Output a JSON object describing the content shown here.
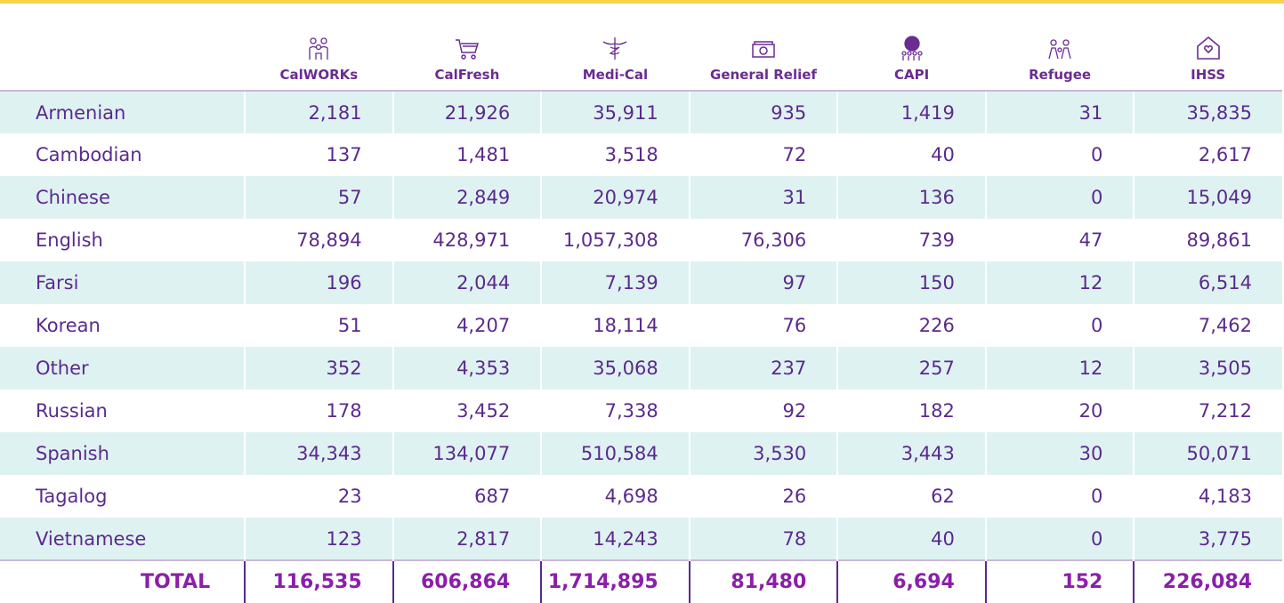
{
  "table": {
    "columns": [
      "CalWORKs",
      "CalFresh",
      "Medi-Cal",
      "General Relief",
      "CAPI",
      "Refugee",
      "IHSS"
    ],
    "rows": [
      [
        "Armenian",
        "2,181",
        "21,926",
        "35,911",
        "935",
        "1,419",
        "31",
        "35,835"
      ],
      [
        "Cambodian",
        "137",
        "1,481",
        "3,518",
        "72",
        "40",
        "0",
        "2,617"
      ],
      [
        "Chinese",
        "57",
        "2,849",
        "20,974",
        "31",
        "136",
        "0",
        "15,049"
      ],
      [
        "English",
        "78,894",
        "428,971",
        "1,057,308",
        "76,306",
        "739",
        "47",
        "89,861"
      ],
      [
        "Farsi",
        "196",
        "2,044",
        "7,139",
        "97",
        "150",
        "12",
        "6,514"
      ],
      [
        "Korean",
        "51",
        "4,207",
        "18,114",
        "76",
        "226",
        "0",
        "7,462"
      ],
      [
        "Other",
        "352",
        "4,353",
        "35,068",
        "237",
        "257",
        "12",
        "3,505"
      ],
      [
        "Russian",
        "178",
        "3,452",
        "7,338",
        "92",
        "182",
        "20",
        "7,212"
      ],
      [
        "Spanish",
        "34,343",
        "134,077",
        "510,584",
        "3,530",
        "3,443",
        "30",
        "50,071"
      ],
      [
        "Tagalog",
        "23",
        "687",
        "4,698",
        "26",
        "62",
        "0",
        "4,183"
      ],
      [
        "Vietnamese",
        "123",
        "2,817",
        "14,243",
        "78",
        "40",
        "0",
        "3,775"
      ]
    ],
    "total": [
      "TOTAL",
      "116,535",
      "606,864",
      "1,714,895",
      "81,480",
      "6,694",
      "152",
      "226,084"
    ]
  }
}
